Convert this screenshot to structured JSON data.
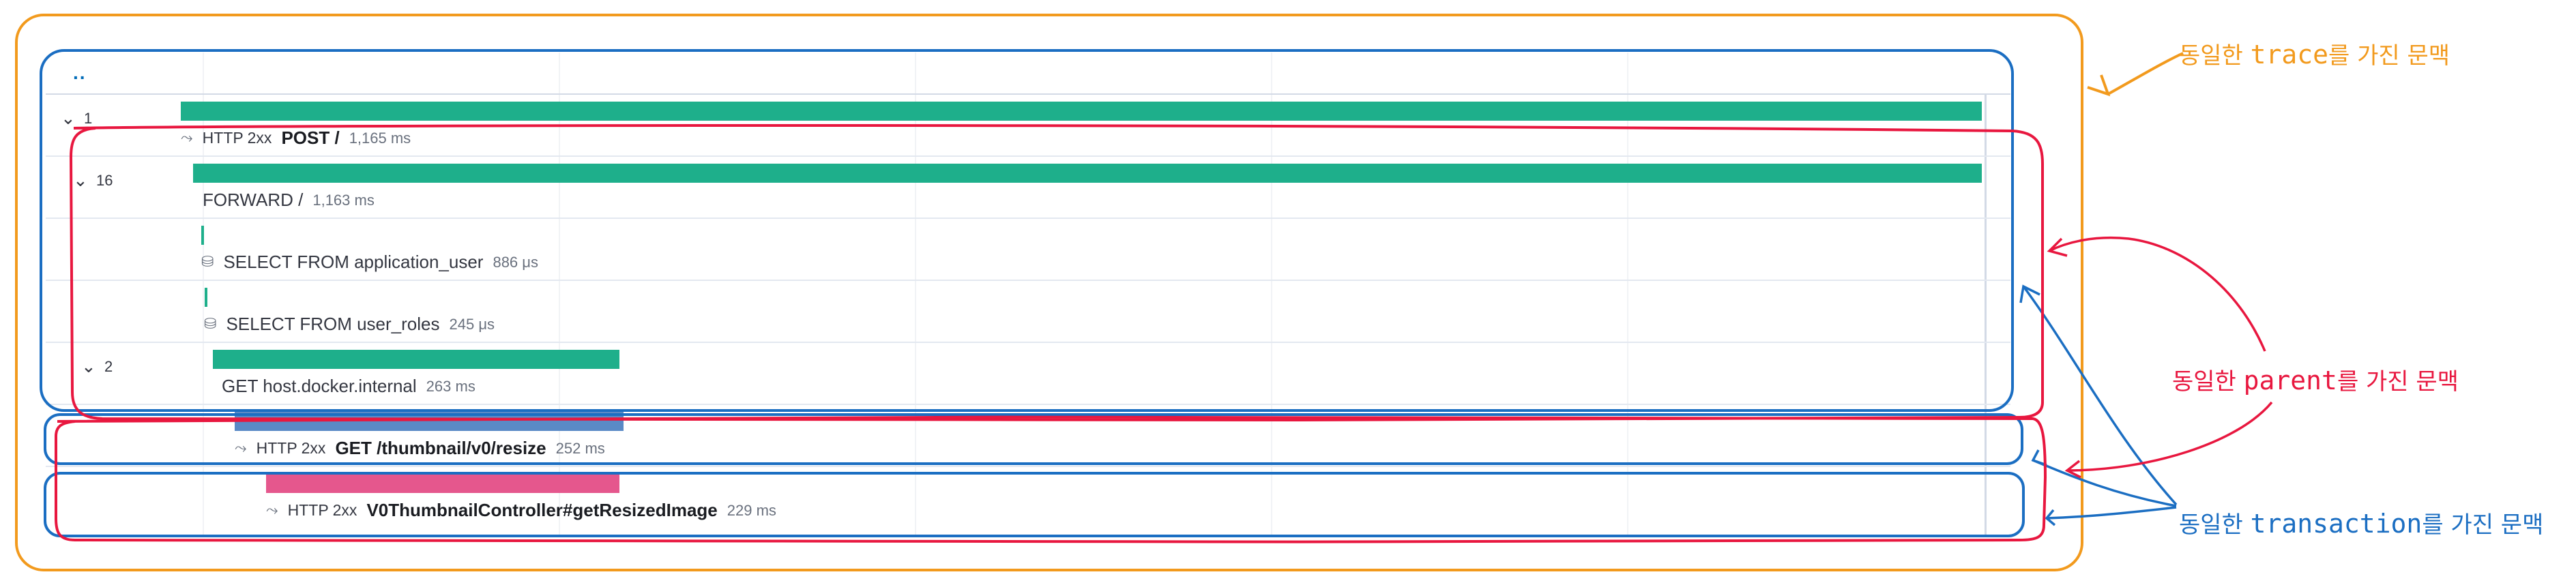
{
  "colors": {
    "trace_outline": "#f29a1d",
    "parent_outline": "#e8173f",
    "transaction_outline": "#1b6ec2",
    "bar_green": "#1eaf8b",
    "bar_blue": "#5a8ac6",
    "bar_pink": "#e5578d",
    "count_link": "#006bb8"
  },
  "waterfall": {
    "top_row_text": "..",
    "rows": [
      {
        "count": "1",
        "status": "HTTP 2xx",
        "name": "POST /",
        "duration": "1,165 ms",
        "icon": "http-icon",
        "bold": true
      },
      {
        "count": "16",
        "status": "",
        "name": "FORWARD /",
        "duration": "1,163 ms",
        "icon": "",
        "bold": false
      },
      {
        "count": "",
        "status": "",
        "name": "SELECT FROM application_user",
        "duration": "886 μs",
        "icon": "database-icon",
        "bold": false
      },
      {
        "count": "",
        "status": "",
        "name": "SELECT FROM user_roles",
        "duration": "245 μs",
        "icon": "database-icon",
        "bold": false
      },
      {
        "count": "2",
        "status": "",
        "name": "GET host.docker.internal",
        "duration": "263 ms",
        "icon": "",
        "bold": false
      },
      {
        "count": "",
        "status": "HTTP 2xx",
        "name": "GET /thumbnail/v0/resize",
        "duration": "252 ms",
        "icon": "http-icon",
        "bold": true
      },
      {
        "count": "",
        "status": "HTTP 2xx",
        "name": "V0ThumbnailController#getResizedImage",
        "duration": "229 ms",
        "icon": "http-icon",
        "bold": true
      }
    ]
  },
  "annotations": {
    "trace": {
      "prefix": "동일한 ",
      "word": "trace",
      "suffix": "를 가진 문맥"
    },
    "parent": {
      "prefix": "동일한 ",
      "word": "parent",
      "suffix": "를 가진 문맥"
    },
    "transaction": {
      "prefix": "동일한 ",
      "word": "transaction",
      "suffix": "를 가진 문맥"
    }
  }
}
